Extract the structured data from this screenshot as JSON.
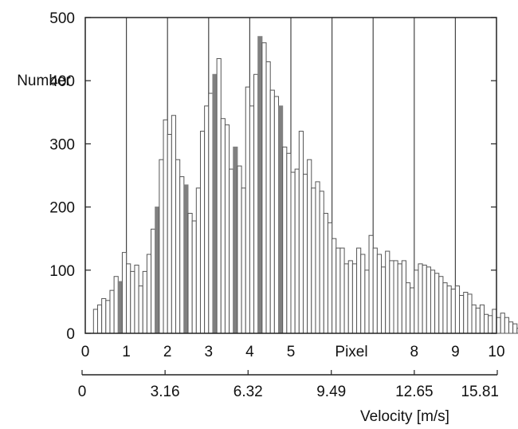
{
  "chart_data": {
    "type": "bar",
    "title": "",
    "ylabel": "Number",
    "xlabel_top": "Pixel",
    "xlabel_bottom": "Velocity [m/s]",
    "ylim": [
      0,
      500
    ],
    "xlim": [
      0,
      10
    ],
    "y_ticks": [
      "0",
      "100",
      "200",
      "300",
      "400",
      "500"
    ],
    "x_pixel_ticks": [
      "0",
      "1",
      "2",
      "3",
      "4",
      "5",
      "8",
      "9",
      "10"
    ],
    "x_velocity_ticks": [
      "0",
      "3.16",
      "6.32",
      "9.49",
      "12.65",
      "15.81"
    ],
    "grid_vertical_at": [
      1,
      2,
      3,
      4,
      5,
      6,
      7,
      8,
      9
    ],
    "bin_width": 0.1,
    "bin_start": 0.2,
    "values": [
      38,
      45,
      55,
      52,
      68,
      90,
      82,
      128,
      110,
      98,
      108,
      75,
      98,
      125,
      165,
      200,
      275,
      338,
      315,
      345,
      275,
      248,
      235,
      190,
      178,
      230,
      320,
      360,
      380,
      410,
      435,
      340,
      330,
      260,
      295,
      265,
      230,
      390,
      360,
      410,
      470,
      460,
      430,
      385,
      375,
      360,
      295,
      285,
      255,
      260,
      320,
      252,
      275,
      230,
      240,
      225,
      190,
      175,
      150,
      135,
      135,
      110,
      115,
      110,
      135,
      125,
      100,
      155,
      135,
      125,
      105,
      130,
      115,
      115,
      110,
      115,
      80,
      72,
      100,
      110,
      108,
      105,
      100,
      95,
      90,
      80,
      75,
      70,
      75,
      60,
      65,
      62,
      45,
      40,
      45,
      30,
      28,
      38,
      25,
      32,
      25,
      18,
      15,
      8,
      5,
      3,
      3,
      2,
      3,
      2,
      2,
      5,
      3
    ],
    "dark_bins": [
      6,
      15,
      22,
      29,
      34,
      40,
      45
    ],
    "colors": {
      "bar_fill": "#ffffff",
      "bar_stroke": "#555555",
      "dark_bar_fill": "#808080",
      "axis": "#222222",
      "grid": "#444444"
    }
  }
}
